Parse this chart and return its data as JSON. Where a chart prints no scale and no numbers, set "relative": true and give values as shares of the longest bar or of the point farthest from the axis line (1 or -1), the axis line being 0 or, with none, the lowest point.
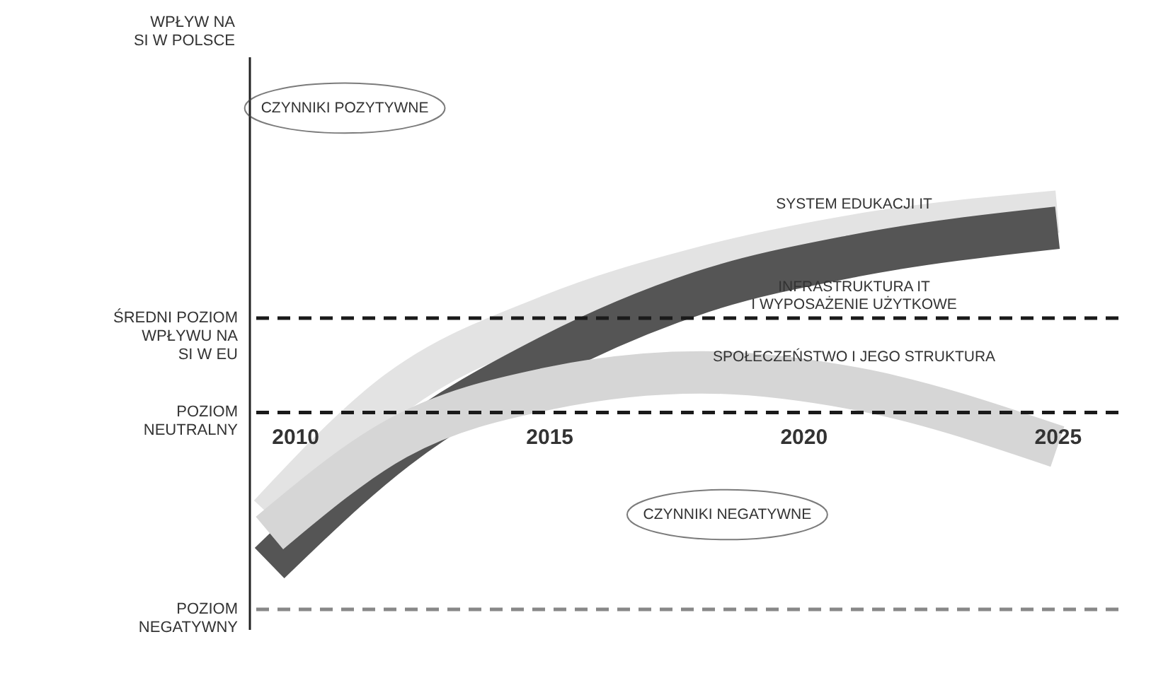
{
  "chart_data": {
    "type": "line",
    "relative": true,
    "x": [
      2009.5,
      2012,
      2015,
      2018,
      2021,
      2025
    ],
    "xlim": [
      2009.1,
      2026.2
    ],
    "xticks": [
      2010,
      2015,
      2020,
      2025
    ],
    "series": [
      {
        "name": "SYSTEM EDUKACJI IT",
        "color": "#e3e3e3",
        "values": [
          -0.51,
          0.1,
          0.48,
          0.72,
          0.88,
          1.0
        ]
      },
      {
        "name": "INFRASTRUKTURA IT\nI WYPOSAŻENIE UŻYTKOWE",
        "color": "#555555",
        "values": [
          -0.75,
          -0.18,
          0.28,
          0.6,
          0.78,
          0.92
        ]
      },
      {
        "name": "SPOŁECZEŃSTWO I JEGO STRUKTURA",
        "color": "#d6d6d6",
        "values": [
          -0.6,
          -0.13,
          0.12,
          0.2,
          0.12,
          -0.17
        ]
      }
    ],
    "ref_lines": [
      {
        "axis": "y",
        "value": 0.47,
        "label": "ŚREDNI POZIOM\nWPŁYWU NA\nSI W EU",
        "color": "#1a1a1a",
        "line_style": "dashed"
      },
      {
        "axis": "y",
        "value": 0,
        "label": "POZIOM\nNEUTRALNY",
        "color": "#1a1a1a",
        "line_style": "dashed"
      },
      {
        "axis": "y",
        "value": -0.98,
        "label": "POZIOM\nNEGATYWNY",
        "color": "#888888",
        "line_style": "dashed"
      }
    ],
    "annotations": [
      "WPŁYW NA\nSI W POLSCE",
      "CZYNNIKI POZYTYWNE",
      "CZYNNIKI NEGATYWNE"
    ],
    "grid": false
  }
}
